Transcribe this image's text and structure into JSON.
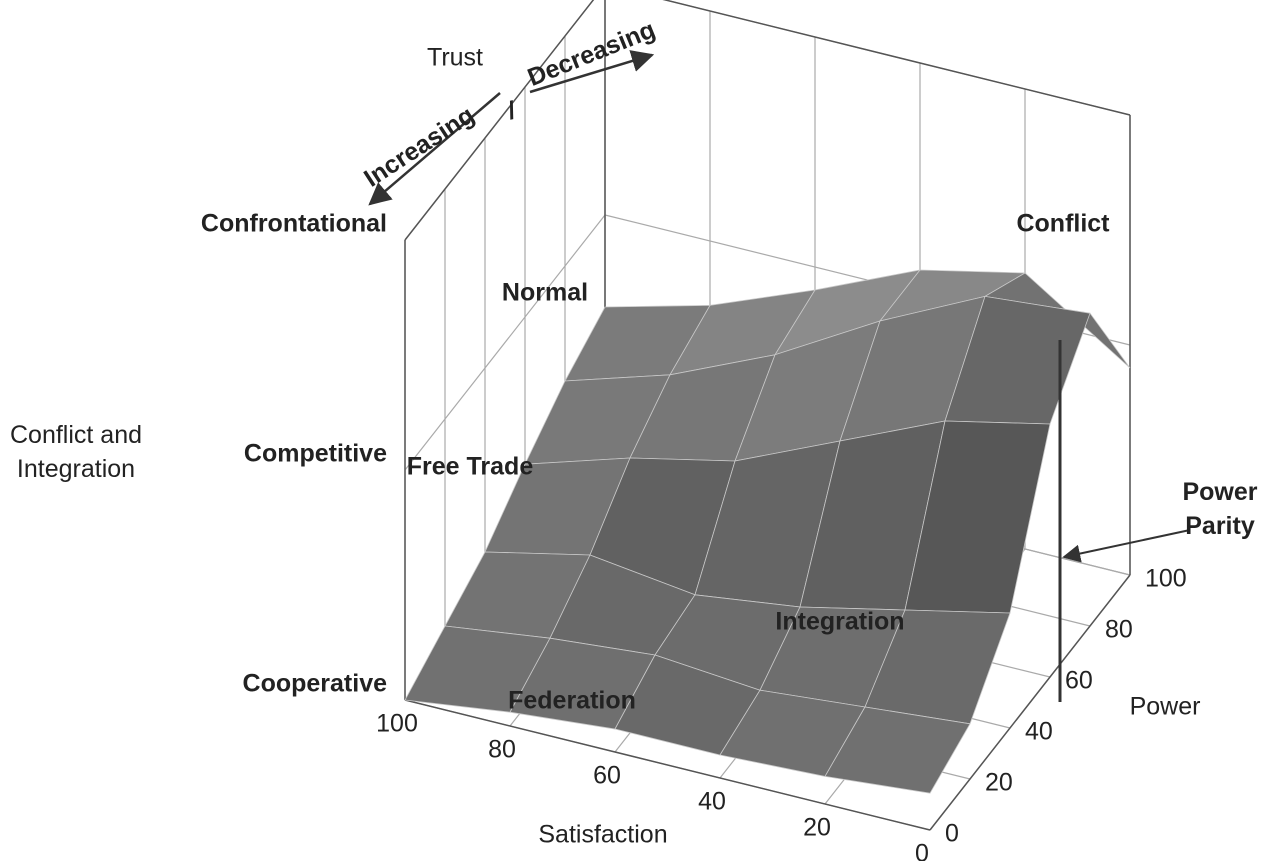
{
  "chart_data": {
    "type": "surface3d",
    "x_label": "Satisfaction",
    "y_label": "Power",
    "z_label": "Conflict and Integration",
    "x": [
      100,
      80,
      60,
      40,
      20,
      0
    ],
    "y": [
      0,
      20,
      40,
      60,
      80,
      100
    ],
    "z": [
      [
        0,
        5,
        10,
        18,
        25,
        30
      ],
      [
        3,
        8,
        15,
        25,
        32,
        36
      ],
      [
        5,
        10,
        12,
        30,
        42,
        45
      ],
      [
        5,
        8,
        15,
        40,
        55,
        55
      ],
      [
        6,
        10,
        20,
        50,
        66,
        60
      ],
      [
        8,
        12,
        25,
        55,
        68,
        45
      ]
    ],
    "xlim": [
      0,
      100
    ],
    "xticks": [
      100,
      80,
      60,
      40,
      20,
      0
    ],
    "ylim": [
      0,
      100
    ],
    "yticks": [
      0,
      20,
      40,
      60,
      80,
      100
    ],
    "zlim": [
      0,
      100
    ],
    "zticks": [
      {
        "value": 0,
        "label": "Cooperative"
      },
      {
        "value": 50,
        "label": "Competitive"
      },
      {
        "value": 100,
        "label": "Confrontational"
      }
    ],
    "color": "#6e6e6e",
    "grid": true,
    "annotations": [
      "Trust",
      "Increasing",
      "/",
      "Decreasing",
      "Conflict",
      "Normal",
      "Free Trade",
      "Integration",
      "Federation",
      "Power Parity"
    ]
  }
}
